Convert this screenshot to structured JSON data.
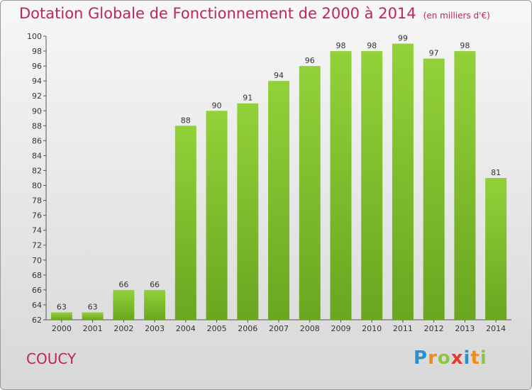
{
  "chart_data": {
    "type": "bar",
    "title": "Dotation Globale de Fonctionnement de 2000 à 2014",
    "unit": "(en milliers d'€)",
    "categories": [
      "2000",
      "2001",
      "2002",
      "2003",
      "2004",
      "2005",
      "2006",
      "2007",
      "2008",
      "2009",
      "2010",
      "2011",
      "2012",
      "2013",
      "2014"
    ],
    "values": [
      63,
      63,
      66,
      66,
      88,
      90,
      91,
      94,
      96,
      98,
      98,
      99,
      97,
      98,
      81
    ],
    "ylim": [
      62,
      100
    ],
    "yticks": [
      62,
      64,
      66,
      68,
      70,
      72,
      74,
      76,
      78,
      80,
      82,
      84,
      86,
      88,
      90,
      92,
      94,
      96,
      98,
      100
    ],
    "grid": false,
    "bar_color": "#7cbf2e"
  },
  "place": "COUCY",
  "logo": {
    "letters": [
      "P",
      "r",
      "o",
      "x",
      "i",
      "t",
      "i"
    ],
    "colors": [
      "#2e8fd0",
      "#f08c1a",
      "#8cc63f",
      "#e53a2f",
      "#2e8fd0",
      "#f08c1a",
      "#8cc63f"
    ]
  }
}
